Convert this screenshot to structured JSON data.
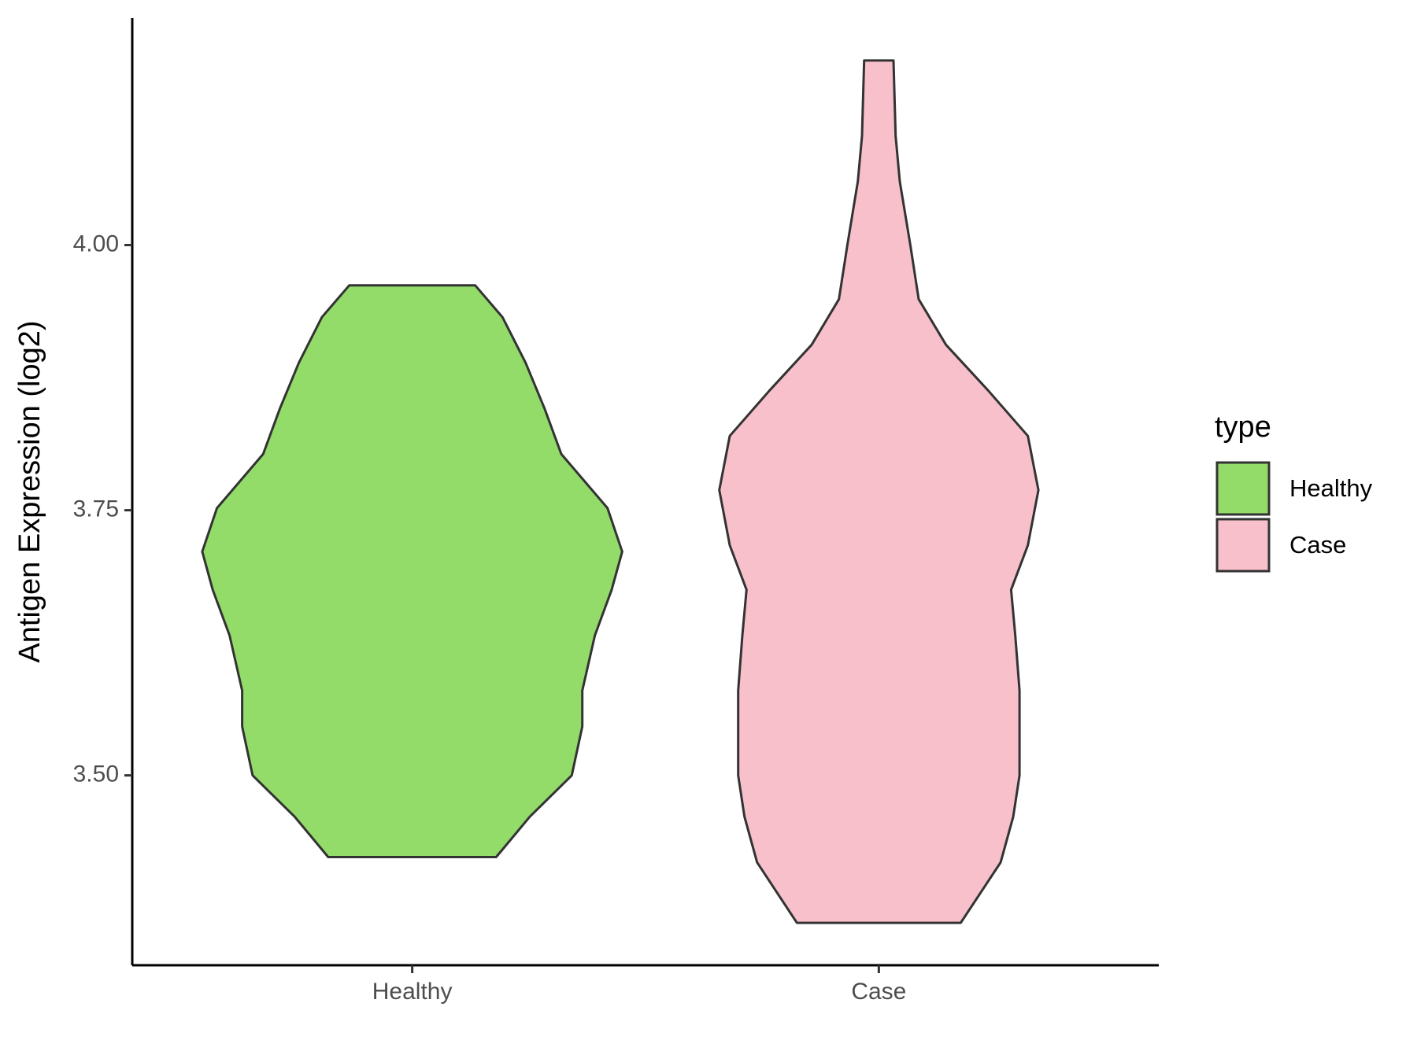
{
  "chart_data": {
    "type": "violin",
    "y_label": "Antigen Expression (log2)",
    "categories": [
      "Healthy",
      "Case"
    ],
    "ylim": [
      3.321,
      4.214
    ],
    "yticks": [
      {
        "value": 3.5,
        "label": "3.50"
      },
      {
        "value": 3.75,
        "label": "3.75"
      },
      {
        "value": 4.0,
        "label": "4.00"
      }
    ],
    "legend_title": "type",
    "legend_position": "right",
    "series": [
      {
        "name": "Healthy",
        "color": "#93dc6a",
        "y": [
          3.423,
          3.461,
          3.5,
          3.546,
          3.58,
          3.632,
          3.675,
          3.711,
          3.752,
          3.803,
          3.846,
          3.889,
          3.932,
          3.962
        ],
        "density": [
          0.4,
          0.56,
          0.76,
          0.81,
          0.81,
          0.87,
          0.95,
          1,
          0.93,
          0.71,
          0.63,
          0.54,
          0.43,
          0.3
        ]
      },
      {
        "name": "Case",
        "color": "#f7c0cb",
        "y": [
          3.361,
          3.418,
          3.461,
          3.5,
          3.546,
          3.58,
          3.632,
          3.675,
          3.717,
          3.769,
          3.82,
          3.863,
          3.906,
          3.949,
          4.0,
          4.06,
          4.103,
          4.174
        ],
        "density": [
          0.39,
          0.58,
          0.64,
          0.67,
          0.67,
          0.67,
          0.65,
          0.63,
          0.71,
          0.76,
          0.71,
          0.52,
          0.32,
          0.19,
          0.15,
          0.1,
          0.08,
          0.07
        ]
      }
    ]
  }
}
